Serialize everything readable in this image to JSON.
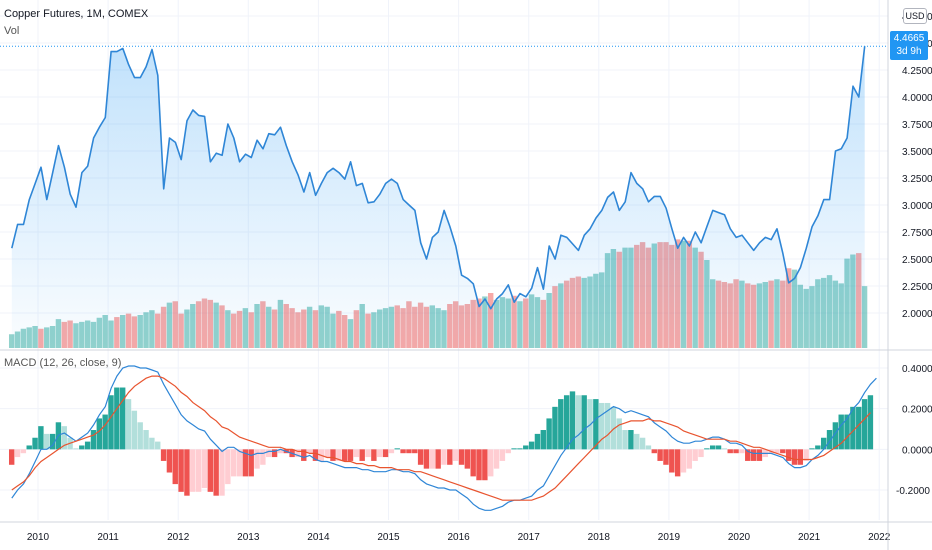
{
  "header": {
    "title": "Copper Futures, 1M, COMEX",
    "volume_label": "Vol",
    "currency": "USD"
  },
  "macd_header": "MACD (12, 26, close, 9)",
  "last_price": {
    "value": "4.4665",
    "countdown": "3d 9h"
  },
  "colors": {
    "price_line": "#2f86d6",
    "macd_line": "#2f86d6",
    "signal_line": "#e8542f",
    "up": "#26a69a",
    "down": "#ef5350",
    "up_light": "#b2dfdb",
    "down_light": "#ffcdd2"
  },
  "chart_data": [
    {
      "type": "area",
      "name": "price",
      "x_start": "2009-08",
      "interval": "1M",
      "y": [
        2.6,
        2.82,
        2.82,
        3.05,
        3.2,
        3.35,
        3.05,
        3.3,
        3.55,
        3.35,
        3.1,
        2.98,
        3.3,
        3.36,
        3.62,
        3.72,
        3.81,
        4.42,
        4.42,
        4.45,
        4.3,
        4.18,
        4.18,
        4.28,
        4.44,
        4.2,
        3.15,
        3.62,
        3.58,
        3.42,
        3.78,
        3.88,
        3.83,
        3.82,
        3.4,
        3.48,
        3.46,
        3.75,
        3.62,
        3.4,
        3.47,
        3.44,
        3.6,
        3.52,
        3.66,
        3.65,
        3.72,
        3.55,
        3.4,
        3.28,
        3.12,
        3.3,
        3.09,
        3.2,
        3.3,
        3.34,
        3.3,
        3.24,
        3.4,
        3.18,
        3.2,
        3.02,
        3.03,
        3.1,
        3.2,
        3.24,
        3.2,
        3.05,
        3.0,
        2.95,
        2.65,
        2.5,
        2.7,
        2.75,
        2.95,
        2.8,
        2.62,
        2.35,
        2.32,
        2.27,
        2.06,
        2.13,
        2.04,
        2.13,
        2.18,
        2.26,
        2.1,
        2.18,
        2.15,
        2.23,
        2.42,
        2.22,
        2.62,
        2.5,
        2.72,
        2.7,
        2.64,
        2.58,
        2.72,
        2.78,
        2.88,
        2.95,
        3.07,
        3.12,
        2.95,
        3.03,
        3.3,
        3.2,
        3.15,
        3.03,
        3.08,
        3.08,
        2.97,
        2.78,
        2.6,
        2.7,
        2.62,
        2.75,
        2.65,
        2.8,
        2.95,
        2.93,
        2.91,
        2.78,
        2.7,
        2.72,
        2.65,
        2.58,
        2.65,
        2.7,
        2.68,
        2.78,
        2.55,
        2.28,
        2.32,
        2.42,
        2.6,
        2.8,
        2.9,
        3.05,
        3.05,
        3.5,
        3.52,
        3.62,
        4.1,
        4.0,
        4.47
      ],
      "ylim": [
        1.75,
        4.75
      ],
      "y_ticks": [
        "2.0000",
        "2.2500",
        "2.5000",
        "2.7500",
        "3.0000",
        "3.2500",
        "3.5000",
        "3.7500",
        "4.0000",
        "4.2500",
        "4.5000",
        "4.7500"
      ],
      "x_ticks": [
        "2010",
        "2011",
        "2012",
        "2013",
        "2014",
        "2015",
        "2016",
        "2017",
        "2018",
        "2019",
        "2020",
        "2021",
        "2022"
      ]
    },
    {
      "type": "bar",
      "name": "volume",
      "values": [
        0.2,
        0.24,
        0.28,
        0.3,
        0.32,
        0.28,
        0.3,
        0.32,
        0.42,
        0.38,
        0.4,
        0.36,
        0.38,
        0.4,
        0.38,
        0.44,
        0.48,
        0.4,
        0.45,
        0.48,
        0.5,
        0.46,
        0.48,
        0.52,
        0.55,
        0.5,
        0.6,
        0.66,
        0.68,
        0.5,
        0.56,
        0.64,
        0.68,
        0.72,
        0.7,
        0.66,
        0.62,
        0.55,
        0.5,
        0.54,
        0.58,
        0.52,
        0.64,
        0.68,
        0.6,
        0.56,
        0.7,
        0.64,
        0.58,
        0.52,
        0.56,
        0.6,
        0.55,
        0.62,
        0.6,
        0.5,
        0.54,
        0.48,
        0.42,
        0.55,
        0.64,
        0.5,
        0.52,
        0.56,
        0.58,
        0.6,
        0.62,
        0.58,
        0.68,
        0.6,
        0.66,
        0.6,
        0.62,
        0.58,
        0.55,
        0.64,
        0.68,
        0.62,
        0.64,
        0.7,
        0.72,
        0.75,
        0.8,
        0.7,
        0.74,
        0.72,
        0.76,
        0.68,
        0.72,
        0.78,
        0.74,
        0.7,
        0.8,
        0.9,
        0.94,
        0.98,
        1.02,
        1.04,
        1.02,
        1.04,
        1.08,
        1.1,
        1.38,
        1.44,
        1.4,
        1.46,
        1.46,
        1.5,
        1.54,
        1.46,
        1.52,
        1.54,
        1.54,
        1.5,
        1.58,
        1.56,
        1.56,
        1.46,
        1.4,
        1.28,
        1.0,
        0.98,
        0.96,
        0.94,
        1.0,
        0.98,
        0.94,
        0.92,
        0.94,
        0.96,
        0.98,
        1.0,
        0.98,
        1.16,
        1.14,
        0.92,
        0.86,
        0.9,
        1.0,
        1.02,
        1.06,
        0.98,
        0.94,
        1.3,
        1.36,
        1.38,
        0.9
      ],
      "direction": [
        1,
        1,
        1,
        1,
        1,
        0,
        1,
        1,
        1,
        0,
        0,
        1,
        1,
        1,
        1,
        1,
        1,
        1,
        0,
        1,
        0,
        0,
        1,
        1,
        1,
        0,
        0,
        1,
        0,
        0,
        1,
        1,
        0,
        0,
        0,
        1,
        0,
        1,
        0,
        0,
        1,
        0,
        1,
        0,
        1,
        0,
        1,
        0,
        0,
        0,
        0,
        1,
        0,
        1,
        1,
        1,
        0,
        0,
        1,
        0,
        1,
        0,
        1,
        1,
        1,
        1,
        0,
        0,
        0,
        0,
        0,
        0,
        1,
        1,
        1,
        0,
        0,
        0,
        0,
        0,
        0,
        1,
        0,
        1,
        1,
        1,
        0,
        1,
        0,
        1,
        1,
        0,
        1,
        0,
        1,
        0,
        0,
        0,
        1,
        1,
        1,
        1,
        1,
        1,
        0,
        1,
        1,
        0,
        0,
        0,
        1,
        0,
        0,
        0,
        0,
        1,
        0,
        1,
        0,
        1,
        1,
        0,
        0,
        0,
        0,
        1,
        0,
        0,
        1,
        1,
        0,
        1,
        0,
        0,
        1,
        1,
        1,
        1,
        1,
        1,
        1,
        1,
        1,
        1,
        1,
        0,
        1
      ]
    },
    {
      "type": "line",
      "name": "MACD",
      "macd": [
        -0.24,
        -0.2,
        -0.17,
        -0.12,
        -0.06,
        0.0,
        0.0,
        0.02,
        0.07,
        0.08,
        0.06,
        0.04,
        0.06,
        0.08,
        0.12,
        0.17,
        0.21,
        0.3,
        0.36,
        0.4,
        0.41,
        0.41,
        0.4,
        0.4,
        0.39,
        0.38,
        0.32,
        0.27,
        0.22,
        0.17,
        0.14,
        0.12,
        0.1,
        0.09,
        0.05,
        0.02,
        -0.01,
        0.01,
        0.01,
        -0.01,
        -0.02,
        -0.03,
        -0.02,
        -0.02,
        -0.01,
        -0.01,
        0.0,
        -0.01,
        -0.02,
        -0.03,
        -0.04,
        -0.03,
        -0.05,
        -0.06,
        -0.06,
        -0.07,
        -0.08,
        -0.09,
        -0.09,
        -0.09,
        -0.1,
        -0.1,
        -0.11,
        -0.11,
        -0.11,
        -0.1,
        -0.1,
        -0.11,
        -0.11,
        -0.12,
        -0.15,
        -0.17,
        -0.18,
        -0.19,
        -0.19,
        -0.2,
        -0.2,
        -0.22,
        -0.24,
        -0.27,
        -0.29,
        -0.3,
        -0.3,
        -0.29,
        -0.28,
        -0.26,
        -0.25,
        -0.25,
        -0.24,
        -0.23,
        -0.2,
        -0.18,
        -0.13,
        -0.08,
        -0.03,
        0.01,
        0.05,
        0.07,
        0.1,
        0.12,
        0.15,
        0.17,
        0.19,
        0.21,
        0.2,
        0.18,
        0.19,
        0.18,
        0.17,
        0.16,
        0.13,
        0.11,
        0.09,
        0.06,
        0.04,
        0.03,
        0.03,
        0.04,
        0.04,
        0.05,
        0.06,
        0.06,
        0.05,
        0.03,
        0.03,
        0.02,
        -0.01,
        -0.02,
        -0.02,
        -0.02,
        -0.02,
        -0.03,
        -0.04,
        -0.07,
        -0.09,
        -0.09,
        -0.08,
        -0.05,
        -0.03,
        0.0,
        0.04,
        0.08,
        0.12,
        0.15,
        0.2,
        0.23,
        0.28,
        0.32,
        0.35
      ],
      "signal": [
        -0.2,
        -0.18,
        -0.16,
        -0.13,
        -0.09,
        -0.06,
        -0.04,
        -0.02,
        0.0,
        0.02,
        0.03,
        0.04,
        0.05,
        0.06,
        0.07,
        0.09,
        0.12,
        0.16,
        0.2,
        0.24,
        0.28,
        0.31,
        0.33,
        0.35,
        0.36,
        0.36,
        0.35,
        0.33,
        0.31,
        0.28,
        0.26,
        0.23,
        0.21,
        0.19,
        0.16,
        0.14,
        0.11,
        0.1,
        0.08,
        0.06,
        0.05,
        0.04,
        0.03,
        0.02,
        0.01,
        0.01,
        0.01,
        0.0,
        0.0,
        -0.01,
        -0.01,
        -0.02,
        -0.02,
        -0.03,
        -0.04,
        -0.04,
        -0.05,
        -0.06,
        -0.06,
        -0.07,
        -0.07,
        -0.08,
        -0.08,
        -0.09,
        -0.09,
        -0.09,
        -0.1,
        -0.1,
        -0.1,
        -0.11,
        -0.11,
        -0.12,
        -0.13,
        -0.14,
        -0.15,
        -0.16,
        -0.17,
        -0.18,
        -0.19,
        -0.2,
        -0.21,
        -0.22,
        -0.23,
        -0.24,
        -0.25,
        -0.25,
        -0.25,
        -0.25,
        -0.25,
        -0.25,
        -0.24,
        -0.23,
        -0.21,
        -0.19,
        -0.16,
        -0.13,
        -0.1,
        -0.07,
        -0.04,
        -0.01,
        0.02,
        0.05,
        0.07,
        0.1,
        0.12,
        0.13,
        0.14,
        0.14,
        0.14,
        0.15,
        0.14,
        0.14,
        0.13,
        0.12,
        0.11,
        0.09,
        0.08,
        0.07,
        0.06,
        0.05,
        0.05,
        0.05,
        0.05,
        0.04,
        0.04,
        0.03,
        0.02,
        0.01,
        0.01,
        0.0,
        -0.01,
        -0.02,
        -0.03,
        -0.04,
        -0.05,
        -0.05,
        -0.05,
        -0.05,
        -0.04,
        -0.03,
        -0.01,
        0.01,
        0.03,
        0.06,
        0.09,
        0.12,
        0.15,
        0.18
      ],
      "ylim": [
        -0.3,
        0.45
      ],
      "y_ticks": [
        "0.4000",
        "0.2000",
        "0.0000",
        "-0.2000"
      ]
    }
  ]
}
